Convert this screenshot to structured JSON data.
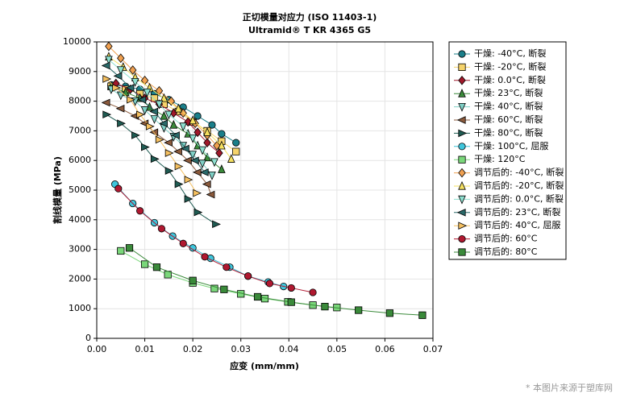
{
  "chart_data": {
    "type": "line",
    "title": "正切模量对应力 (ISO 11403-1)",
    "subtitle": "Ultramid® T KR 4365 G5",
    "x_label": "应变 (mm/mm)",
    "y_label": "割线模量 (MPa)",
    "watermark": "* 本图片来源于塑库网",
    "xlim": [
      0,
      0.07
    ],
    "ylim": [
      0,
      10000
    ],
    "xticks": [
      {
        "value": 0,
        "label": "0.00"
      },
      {
        "value": 0.01,
        "label": "0.01"
      },
      {
        "value": 0.02,
        "label": "0.02"
      },
      {
        "value": 0.03,
        "label": "0.03"
      },
      {
        "value": 0.04,
        "label": "0.04"
      },
      {
        "value": 0.05,
        "label": "0.05"
      },
      {
        "value": 0.06,
        "label": "0.06"
      },
      {
        "value": 0.07,
        "label": "0.07"
      }
    ],
    "yticks": [
      0,
      1000,
      2000,
      3000,
      4000,
      5000,
      6000,
      7000,
      8000,
      9000,
      10000
    ],
    "grid": true,
    "legend": "right",
    "series": [
      {
        "name": "干燥: -40°C, 断裂",
        "color": "#1a7f8a",
        "marker": "circle",
        "x": [
          0.003,
          0.006,
          0.009,
          0.012,
          0.015,
          0.018,
          0.021,
          0.024,
          0.026,
          0.029
        ],
        "values": [
          8550,
          8500,
          8400,
          8250,
          8050,
          7800,
          7500,
          7200,
          6900,
          6600
        ]
      },
      {
        "name": "干燥: -20°C, 断裂",
        "color": "#f5d36b",
        "marker": "square",
        "x": [
          0.003,
          0.006,
          0.009,
          0.012,
          0.014,
          0.017,
          0.02,
          0.023,
          0.026,
          0.029
        ],
        "values": [
          8500,
          8400,
          8250,
          8100,
          7900,
          7650,
          7300,
          7000,
          6650,
          6300
        ]
      },
      {
        "name": "干燥: 0.0°C, 断裂",
        "color": "#a0182a",
        "marker": "diamond",
        "x": [
          0.004,
          0.007,
          0.01,
          0.013,
          0.016,
          0.019,
          0.021,
          0.023,
          0.0255
        ],
        "values": [
          8600,
          8400,
          8100,
          7900,
          7600,
          7300,
          6950,
          6600,
          6250
        ]
      },
      {
        "name": "干燥: 23°C, 断裂",
        "color": "#3a8a3a",
        "marker": "triangle-up",
        "x": [
          0.003,
          0.006,
          0.009,
          0.011,
          0.014,
          0.016,
          0.019,
          0.021,
          0.023,
          0.026
        ],
        "values": [
          8500,
          8300,
          8100,
          7800,
          7500,
          7200,
          6900,
          6500,
          6100,
          5700
        ]
      },
      {
        "name": "干燥: 40°C, 断裂",
        "color": "#7fd0c6",
        "marker": "triangle-down",
        "x": [
          0.003,
          0.005,
          0.008,
          0.01,
          0.012,
          0.014,
          0.016,
          0.018,
          0.02,
          0.022,
          0.024
        ],
        "values": [
          8400,
          8200,
          8000,
          7700,
          7400,
          7100,
          6800,
          6500,
          6200,
          5900,
          5500
        ]
      },
      {
        "name": "干燥: 60°C, 断裂",
        "color": "#8b5a3c",
        "marker": "triangle-left",
        "x": [
          0.002,
          0.005,
          0.008,
          0.01,
          0.012,
          0.015,
          0.017,
          0.019,
          0.021,
          0.023,
          0.0238
        ],
        "values": [
          7950,
          7750,
          7500,
          7250,
          6950,
          6600,
          6300,
          6000,
          5600,
          5200,
          4850
        ]
      },
      {
        "name": "干燥: 80°C, 断裂",
        "color": "#1f5b52",
        "marker": "triangle-right",
        "x": [
          0.002,
          0.005,
          0.008,
          0.01,
          0.012,
          0.015,
          0.017,
          0.019,
          0.021,
          0.0248
        ],
        "values": [
          7550,
          7250,
          6850,
          6450,
          6050,
          5650,
          5200,
          4700,
          4250,
          3850
        ]
      },
      {
        "name": "干燥: 100°C, 屈服",
        "color": "#3fc6dc",
        "marker": "circle",
        "x": [
          0.0038,
          0.0075,
          0.012,
          0.0158,
          0.02,
          0.0237,
          0.0277,
          0.0315,
          0.0357,
          0.0389
        ],
        "values": [
          5200,
          4550,
          3900,
          3450,
          3050,
          2700,
          2400,
          2100,
          1900,
          1750
        ]
      },
      {
        "name": "干燥: 120°C",
        "color": "#7ad77a",
        "marker": "square",
        "x": [
          0.005,
          0.01,
          0.0148,
          0.02,
          0.0245,
          0.03,
          0.035,
          0.0398,
          0.045,
          0.05
        ],
        "values": [
          2950,
          2500,
          2150,
          1870,
          1680,
          1500,
          1340,
          1230,
          1120,
          1040
        ]
      },
      {
        "name": "调节后的: -40°C, 断裂",
        "color": "#f0a050",
        "marker": "diamond",
        "x": [
          0.0025,
          0.005,
          0.0075,
          0.01,
          0.013,
          0.0155,
          0.018,
          0.0205,
          0.023,
          0.025
        ],
        "values": [
          9850,
          9450,
          9050,
          8700,
          8350,
          8000,
          7600,
          7250,
          6850,
          6500
        ]
      },
      {
        "name": "调节后的: -20°C, 断裂",
        "color": "#f5e060",
        "marker": "triangle-up",
        "x": [
          0.0025,
          0.0055,
          0.008,
          0.011,
          0.014,
          0.017,
          0.02,
          0.023,
          0.026,
          0.028
        ],
        "values": [
          9500,
          9150,
          8800,
          8450,
          8100,
          7750,
          7350,
          6950,
          6500,
          6050
        ]
      },
      {
        "name": "调节后的: 0.0°C, 断裂",
        "color": "#8ee0d0",
        "marker": "triangle-down",
        "x": [
          0.0025,
          0.005,
          0.008,
          0.0105,
          0.013,
          0.015,
          0.018,
          0.02,
          0.022,
          0.0245
        ],
        "values": [
          9400,
          9050,
          8650,
          8300,
          7900,
          7550,
          7150,
          6750,
          6350,
          5950
        ]
      },
      {
        "name": "调节后的: 23°C, 断裂",
        "color": "#2a6a6a",
        "marker": "triangle-left",
        "x": [
          0.002,
          0.0045,
          0.007,
          0.0095,
          0.012,
          0.014,
          0.0165,
          0.0185,
          0.0205,
          0.0225
        ],
        "values": [
          9200,
          8850,
          8450,
          8050,
          7650,
          7250,
          6850,
          6400,
          6000,
          5600
        ]
      },
      {
        "name": "调节后的: 40°C, 屈服",
        "color": "#f5c060",
        "marker": "triangle-right",
        "x": [
          0.002,
          0.004,
          0.007,
          0.009,
          0.011,
          0.013,
          0.015,
          0.017,
          0.019,
          0.0208
        ],
        "values": [
          8750,
          8450,
          8050,
          7550,
          7150,
          6700,
          6250,
          5800,
          5350,
          4900
        ]
      },
      {
        "name": "调节后的: 60°C",
        "color": "#b01830",
        "marker": "circle",
        "x": [
          0.0045,
          0.009,
          0.0135,
          0.018,
          0.0225,
          0.027,
          0.0315,
          0.036,
          0.0405,
          0.045
        ],
        "values": [
          5050,
          4300,
          3700,
          3200,
          2750,
          2400,
          2100,
          1850,
          1700,
          1550
        ]
      },
      {
        "name": "调节后的: 80°C",
        "color": "#3a8a3a",
        "marker": "square",
        "x": [
          0.0068,
          0.0125,
          0.02,
          0.0265,
          0.0335,
          0.0405,
          0.0475,
          0.0545,
          0.061,
          0.0678
        ],
        "values": [
          3050,
          2400,
          1950,
          1650,
          1400,
          1220,
          1070,
          950,
          850,
          780
        ]
      }
    ]
  }
}
